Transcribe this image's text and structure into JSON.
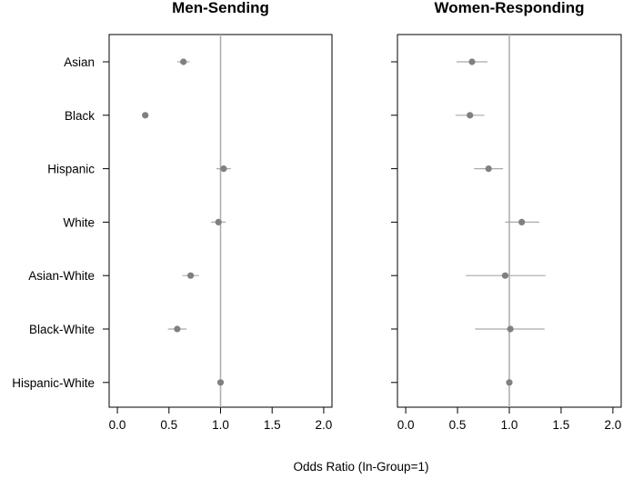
{
  "chart_data": {
    "type": "scatter",
    "subtype": "forest-plot",
    "xlabel": "Odds Ratio (In-Group=1)",
    "categories": [
      "Asian",
      "Black",
      "Hispanic",
      "White",
      "Asian-White",
      "Black-White",
      "Hispanic-White"
    ],
    "xlim": [
      -0.08,
      2.08
    ],
    "xticks": [
      0.0,
      0.5,
      1.0,
      1.5,
      2.0
    ],
    "xtick_labels": [
      "0.0",
      "0.5",
      "1.0",
      "1.5",
      "2.0"
    ],
    "reference_line": 1.0,
    "grid": false,
    "point_color": "#808080",
    "line_color": "#aaaaaa",
    "panels": [
      {
        "title": "Men-Sending",
        "estimates": [
          0.64,
          0.27,
          1.03,
          0.98,
          0.71,
          0.58,
          1.0
        ],
        "lower": [
          0.58,
          0.25,
          0.96,
          0.91,
          0.63,
          0.49,
          1.0
        ],
        "upper": [
          0.7,
          0.29,
          1.1,
          1.05,
          0.79,
          0.67,
          1.0
        ]
      },
      {
        "title": "Women-Responding",
        "estimates": [
          0.64,
          0.62,
          0.8,
          1.12,
          0.96,
          1.01,
          1.0
        ],
        "lower": [
          0.49,
          0.48,
          0.66,
          0.96,
          0.58,
          0.67,
          1.0
        ],
        "upper": [
          0.79,
          0.76,
          0.94,
          1.29,
          1.35,
          1.34,
          1.0
        ]
      }
    ]
  }
}
